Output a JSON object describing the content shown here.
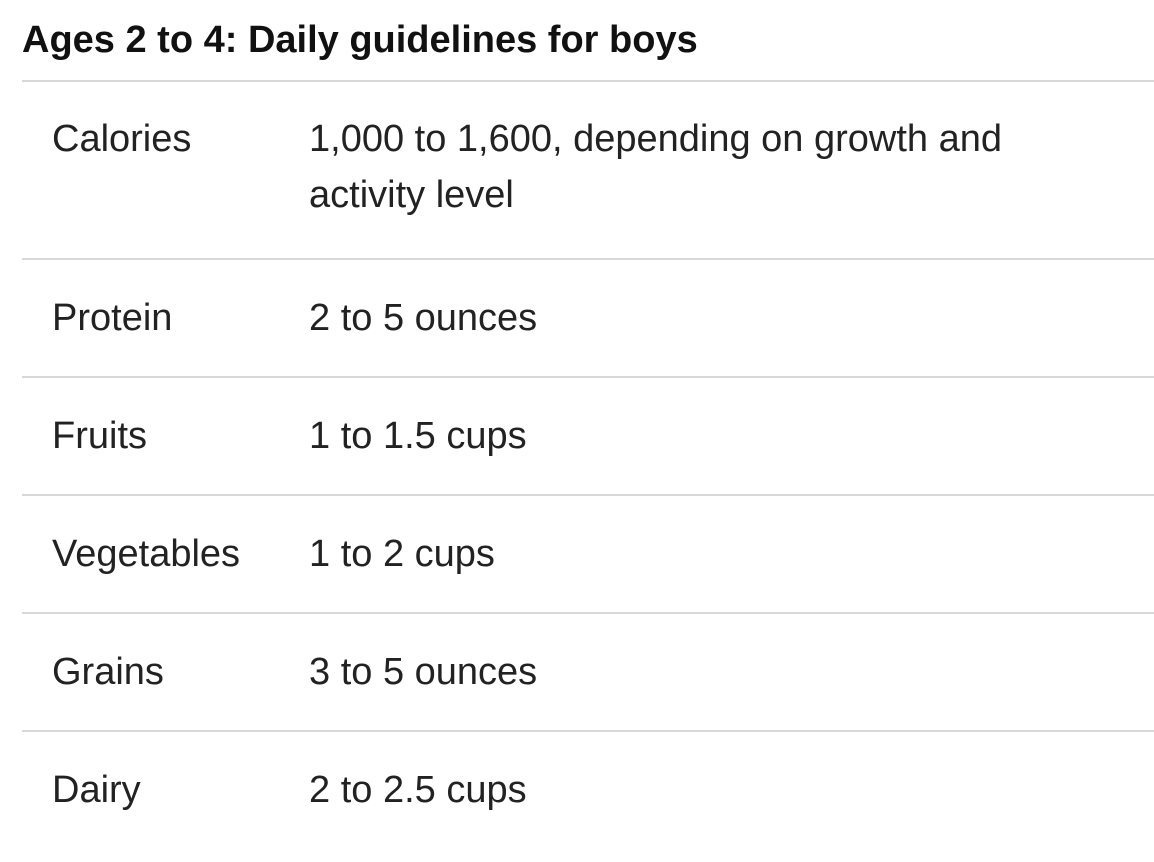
{
  "title": "Ages 2 to 4: Daily guidelines for boys",
  "rows": [
    {
      "label": "Calories",
      "value": "1,000 to 1,600, depending on growth and activity level"
    },
    {
      "label": "Protein",
      "value": "2 to 5 ounces"
    },
    {
      "label": "Fruits",
      "value": "1 to 1.5 cups"
    },
    {
      "label": "Vegetables",
      "value": "1 to 2 cups"
    },
    {
      "label": "Grains",
      "value": "3 to 5 ounces"
    },
    {
      "label": "Dairy",
      "value": "2 to 2.5 cups"
    }
  ]
}
